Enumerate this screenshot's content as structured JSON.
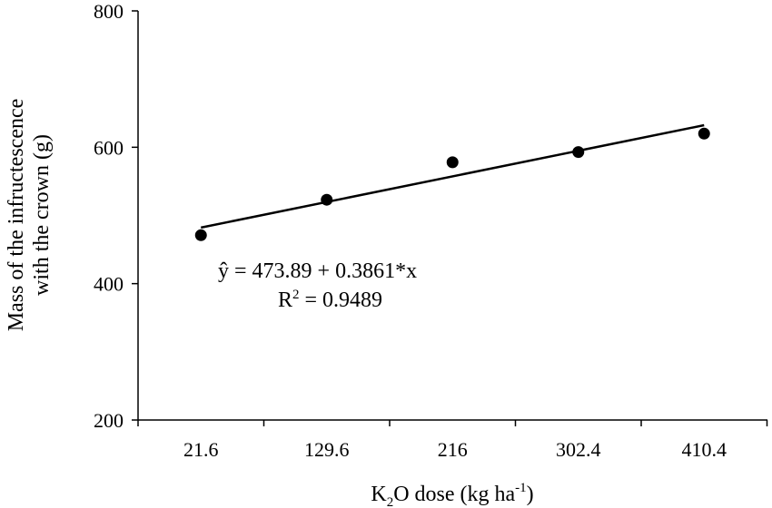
{
  "chart_data": {
    "type": "scatter",
    "x": [
      21.6,
      129.6,
      216,
      302.4,
      410.4
    ],
    "y": [
      471,
      523,
      578,
      593,
      620
    ],
    "categories": [
      "21.6",
      "129.6",
      "216",
      "302.4",
      "410.4"
    ],
    "ylim": [
      200,
      800
    ],
    "yticks": [
      200,
      400,
      600,
      800
    ],
    "xlabel": {
      "main": "K",
      "sub": "2",
      "mid": "O dose (kg ha",
      "sup": "-1",
      "end": ")"
    },
    "ylabel": [
      "Mass of the infructescence",
      "with the crown (g)"
    ],
    "trendline": {
      "intercept": 473.89,
      "slope": 0.3861
    },
    "annotation": {
      "equation": "ŷ = 473.89 + 0.3861*x",
      "r2_prefix": "R",
      "r2_sup": "2",
      "r2_value": " = 0.9489"
    },
    "grid": false,
    "legend": "none"
  }
}
